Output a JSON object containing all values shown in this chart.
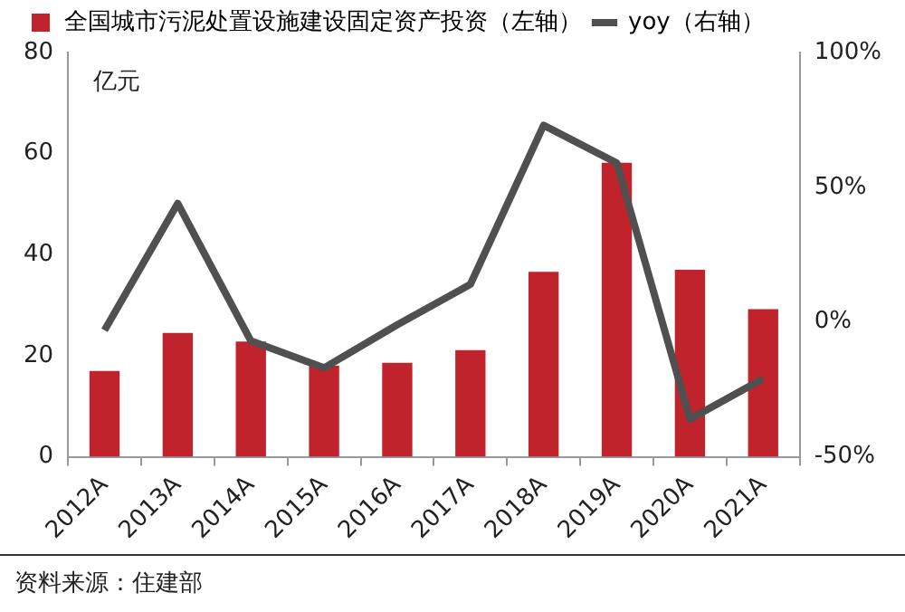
{
  "chart_data": {
    "type": "bar",
    "ylabel": "亿元",
    "annotations": [
      "资料来源：住建部"
    ],
    "categories": [
      "2012A",
      "2013A",
      "2014A",
      "2015A",
      "2016A",
      "2017A",
      "2018A",
      "2019A",
      "2020A",
      "2021A"
    ],
    "series": [
      {
        "name": "全国城市污泥处置设施建设固定资产投资（左轴）",
        "color": "#c0232c",
        "values": [
          17,
          24.5,
          22.8,
          18,
          18.6,
          21.1,
          36.6,
          58.2,
          37,
          29.2
        ]
      },
      {
        "name": "yoy（右轴）",
        "type": "line",
        "axis": "y2",
        "color": "#505050",
        "values": [
          -3,
          44,
          -7,
          -17,
          -1,
          14,
          73,
          59,
          -36,
          -21
        ]
      }
    ],
    "ylim": [
      0,
      80
    ],
    "yticks": [
      0,
      20,
      40,
      60,
      80
    ],
    "y2lim": [
      -50,
      100
    ],
    "y2ticks": [
      {
        "value": -50,
        "label": "-50%"
      },
      {
        "value": 0,
        "label": "0%"
      },
      {
        "value": 50,
        "label": "50%"
      },
      {
        "value": 100,
        "label": "100%"
      }
    ],
    "grid": false,
    "legend": "top left",
    "marker": "none",
    "line_style": "solid"
  }
}
